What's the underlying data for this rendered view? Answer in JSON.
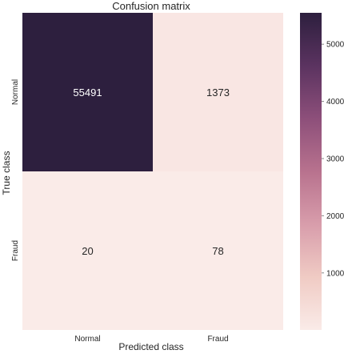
{
  "chart_data": {
    "type": "heatmap",
    "title": "Confusion matrix",
    "xlabel": "Predicted class",
    "ylabel": "True class",
    "x_categories": [
      "Normal",
      "Fraud"
    ],
    "y_categories": [
      "Normal",
      "Fraud"
    ],
    "values": [
      [
        55491,
        1373
      ],
      [
        20,
        78
      ]
    ],
    "value_labels": [
      [
        "55491",
        "1373"
      ],
      [
        "20",
        "78"
      ]
    ],
    "colorbar": {
      "range": [
        20,
        55491
      ],
      "ticks": [
        10000,
        20000,
        30000,
        40000,
        50000
      ],
      "tick_labels": [
        "10000",
        "20000",
        "30000",
        "40000",
        "50000"
      ],
      "colors": [
        "#faebe8",
        "#f0cbc4",
        "#d89dab",
        "#b8728e",
        "#8d4f7a",
        "#5b3360",
        "#2d1f3e"
      ]
    }
  }
}
